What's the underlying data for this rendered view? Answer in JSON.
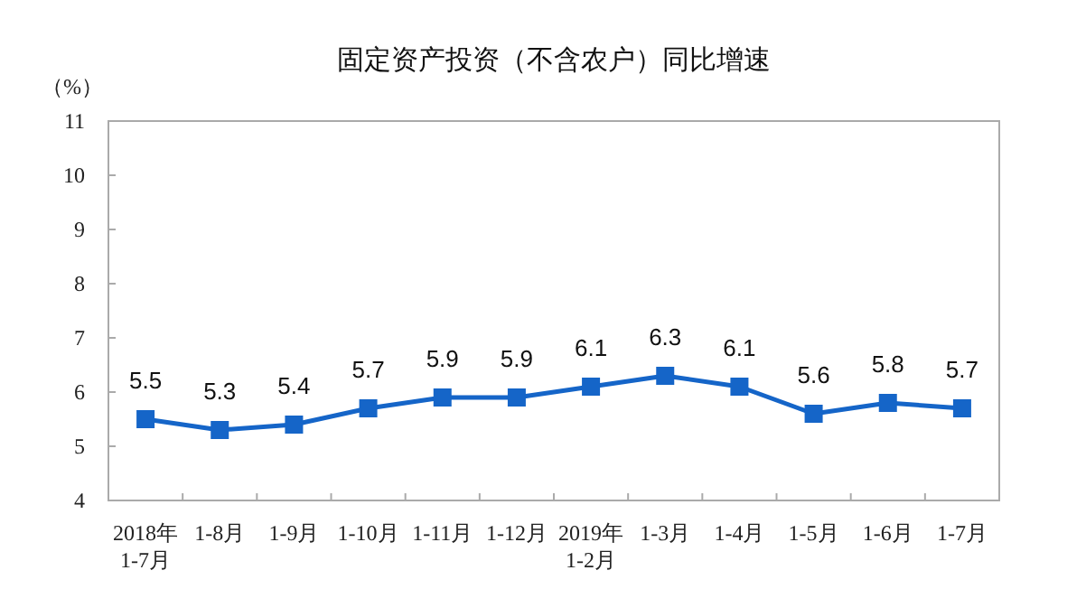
{
  "chart_data": {
    "type": "line",
    "title": "固定资产投资（不含农户）同比增速",
    "ylabel": "（%）",
    "categories": [
      "2018年\n1-7月",
      "1-8月",
      "1-9月",
      "1-10月",
      "1-11月",
      "1-12月",
      "2019年\n1-2月",
      "1-3月",
      "1-4月",
      "1-5月",
      "1-6月",
      "1-7月"
    ],
    "series": [
      {
        "color": "#1565c8",
        "values": [
          5.5,
          5.3,
          5.4,
          5.7,
          5.9,
          5.9,
          6.1,
          6.3,
          6.1,
          5.6,
          5.8,
          5.7
        ]
      }
    ],
    "ylim": [
      4,
      11
    ],
    "yticks": [
      4,
      5,
      6,
      7,
      8,
      9,
      10,
      11
    ],
    "marker": "square",
    "data_labels": true
  }
}
